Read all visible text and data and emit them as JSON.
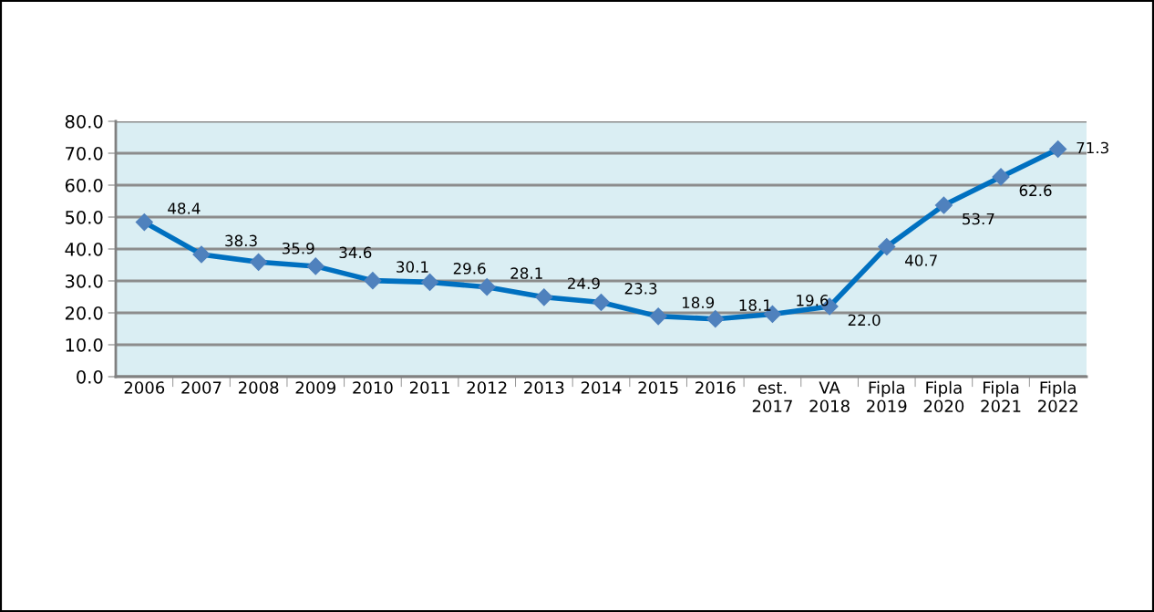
{
  "chart_data": {
    "type": "line",
    "categories": [
      "2006",
      "2007",
      "2008",
      "2009",
      "2010",
      "2011",
      "2012",
      "2013",
      "2014",
      "2015",
      "2016",
      "est.\n2017",
      "VA\n2018",
      "Fipla\n2019",
      "Fipla\n2020",
      "Fipla\n2021",
      "Fipla\n2022"
    ],
    "series": [
      {
        "color": "#0070c0",
        "values": [
          48.4,
          38.3,
          35.9,
          34.6,
          30.1,
          29.6,
          28.1,
          24.9,
          23.3,
          18.9,
          18.1,
          19.6,
          22.0,
          40.7,
          53.7,
          62.6,
          71.3
        ],
        "value_labels": [
          "48.4",
          "38.3",
          "35.9",
          "34.6",
          "30.1",
          "29.6",
          "28.1",
          "24.9",
          "23.3",
          "18.9",
          "18.1",
          "19.6",
          "22.0",
          "40.7",
          "53.7",
          "62.6",
          "71.3"
        ]
      }
    ],
    "ylim": [
      0,
      80
    ],
    "yticks": [
      {
        "value": 0,
        "label": "0.0"
      },
      {
        "value": 10,
        "label": "10.0"
      },
      {
        "value": 20,
        "label": "20.0"
      },
      {
        "value": 30,
        "label": "30.0"
      },
      {
        "value": 40,
        "label": "40.0"
      },
      {
        "value": 50,
        "label": "50.0"
      },
      {
        "value": 60,
        "label": "60.0"
      },
      {
        "value": 70,
        "label": "70.0"
      },
      {
        "value": 80,
        "label": "80.0"
      }
    ],
    "grid": "y",
    "marker": "diamond",
    "line_style": "solid",
    "legend": false
  }
}
